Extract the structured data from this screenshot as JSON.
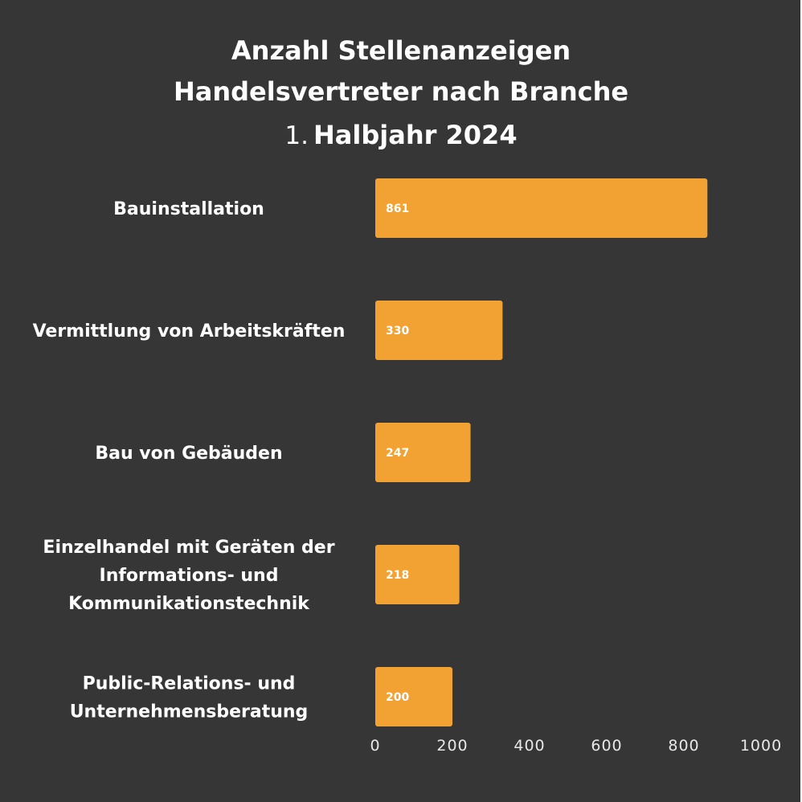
{
  "chart_data": {
    "type": "bar",
    "orientation": "horizontal",
    "title": {
      "line1": "Anzahl Stellenanzeigen",
      "line2": "Handelsvertreter nach Branche",
      "line3_number": "1.",
      "line3_text": "Halbjahr 2024"
    },
    "categories": [
      [
        "Bauinstallation"
      ],
      [
        "Vermittlung von Arbeitskräften"
      ],
      [
        "Bau von Gebäuden"
      ],
      [
        "Einzelhandel mit Geräten der",
        "Informations- und",
        "Kommunikationstechnik"
      ],
      [
        "Public-Relations- und",
        "Unternehmensberatung"
      ]
    ],
    "values": [
      861,
      330,
      247,
      218,
      200
    ],
    "xlim": [
      0,
      1000
    ],
    "xticks": [
      "0",
      "200",
      "400",
      "600",
      "800",
      "1000"
    ],
    "xlabel": "",
    "ylabel": "",
    "grid": false,
    "legend": "none",
    "colors": {
      "background": "#363636",
      "bar": "#f2a232",
      "text": "#ffffff",
      "tick_text": "#e8e8e8"
    }
  }
}
